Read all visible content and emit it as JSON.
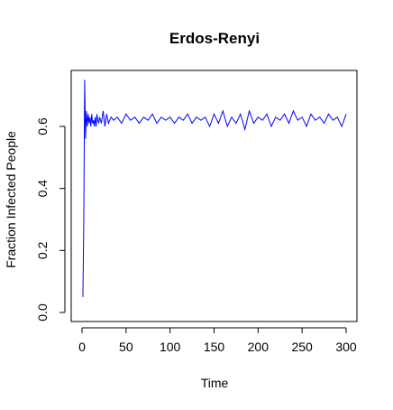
{
  "chart_data": {
    "type": "line",
    "title": "Erdos-Renyi",
    "xlabel": "Time",
    "ylabel": "Fraction Infected People",
    "xlim": [
      0,
      300
    ],
    "ylim": [
      0,
      0.75
    ],
    "xticks": [
      0,
      50,
      100,
      150,
      200,
      250,
      300
    ],
    "yticks": [
      0.0,
      0.2,
      0.4,
      0.6
    ],
    "xtick_labels": [
      "0",
      "50",
      "100",
      "150",
      "200",
      "250",
      "300"
    ],
    "ytick_labels": [
      "0.0",
      "0.2",
      "0.4",
      "0.6"
    ],
    "grid": false,
    "series_color": "#0000ff",
    "series": [
      {
        "x": [
          1,
          2,
          3,
          4,
          5,
          6,
          7,
          8,
          9,
          10,
          11,
          12,
          13,
          14,
          15,
          16,
          17,
          18,
          19,
          20,
          22,
          24,
          26,
          28,
          30,
          33,
          36,
          40,
          45,
          50,
          55,
          60,
          65,
          70,
          75,
          80,
          85,
          90,
          95,
          100,
          105,
          110,
          115,
          120,
          125,
          130,
          135,
          140,
          145,
          150,
          155,
          160,
          165,
          170,
          175,
          180,
          185,
          190,
          195,
          200,
          205,
          210,
          215,
          220,
          225,
          230,
          235,
          240,
          245,
          250,
          255,
          260,
          265,
          270,
          275,
          280,
          285,
          290,
          295,
          300
        ],
        "y": [
          0.05,
          0.3,
          0.75,
          0.56,
          0.65,
          0.6,
          0.64,
          0.61,
          0.63,
          0.6,
          0.64,
          0.61,
          0.62,
          0.6,
          0.63,
          0.6,
          0.64,
          0.62,
          0.61,
          0.63,
          0.61,
          0.65,
          0.6,
          0.64,
          0.61,
          0.63,
          0.62,
          0.63,
          0.61,
          0.64,
          0.62,
          0.63,
          0.61,
          0.63,
          0.62,
          0.64,
          0.61,
          0.63,
          0.62,
          0.63,
          0.61,
          0.63,
          0.62,
          0.64,
          0.61,
          0.63,
          0.62,
          0.63,
          0.6,
          0.64,
          0.61,
          0.65,
          0.6,
          0.63,
          0.61,
          0.64,
          0.59,
          0.65,
          0.61,
          0.63,
          0.62,
          0.64,
          0.6,
          0.63,
          0.62,
          0.64,
          0.61,
          0.65,
          0.62,
          0.63,
          0.6,
          0.64,
          0.62,
          0.63,
          0.61,
          0.64,
          0.62,
          0.63,
          0.6,
          0.64
        ]
      }
    ]
  }
}
